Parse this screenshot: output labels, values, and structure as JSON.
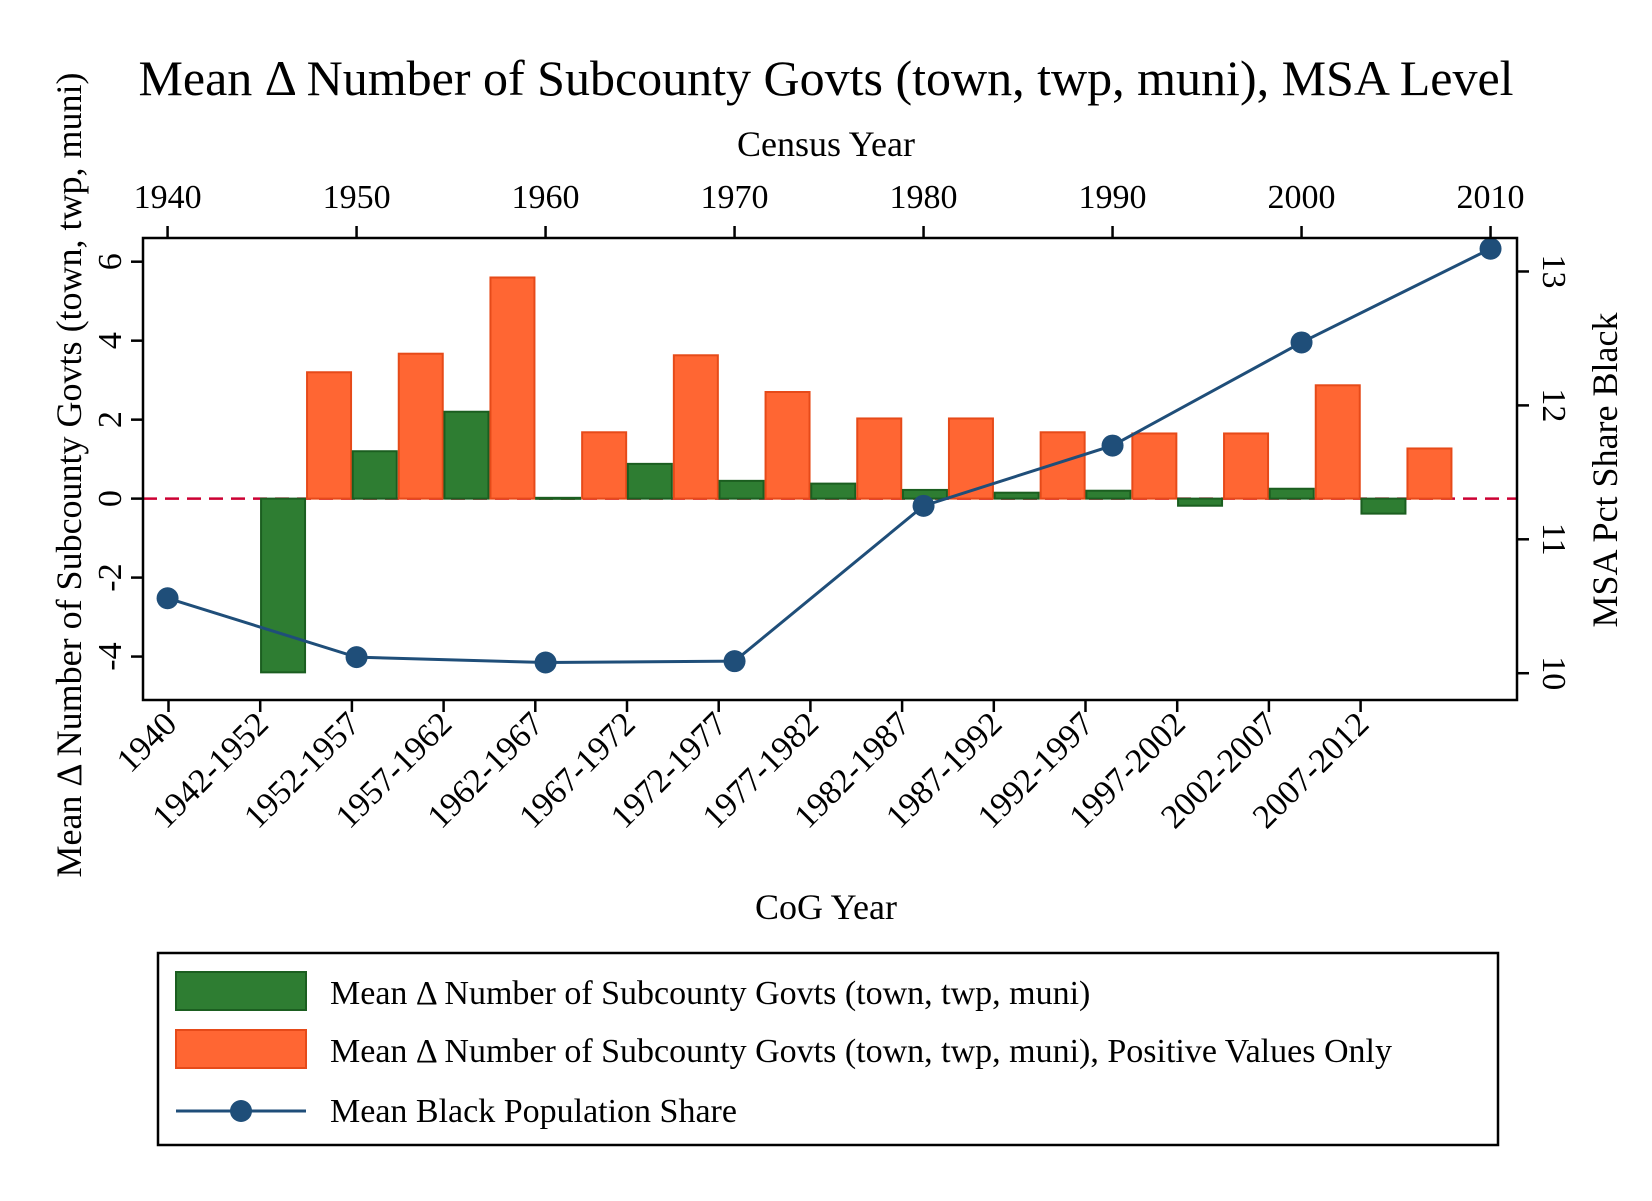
{
  "chart_data": {
    "type": "bar",
    "title": "Mean Δ Number of Subcounty Govts (town, twp, muni), MSA Level",
    "top_xlabel": "Census Year",
    "xlabel": "CoG Year",
    "ylabel": "Mean Δ Number of Subcounty Govts (town, twp, muni)",
    "y2label": "MSA Pct Share Black",
    "ylim": [
      -5.1,
      6.6
    ],
    "y2lim": [
      9.8,
      13.25
    ],
    "top_xlim": [
      1938.7,
      2011.4
    ],
    "yticks": [
      "-4",
      "-2",
      "0",
      "2",
      "4",
      "6"
    ],
    "y2ticks": [
      "10",
      "11",
      "12",
      "13"
    ],
    "top_xticks": [
      "1940",
      "1950",
      "1960",
      "1970",
      "1980",
      "1990",
      "2000",
      "2010"
    ],
    "categories": [
      "1940",
      "1942-1952",
      "1952-1957",
      "1957-1962",
      "1962-1967",
      "1967-1972",
      "1972-1977",
      "1977-1982",
      "1982-1987",
      "1987-1992",
      "1992-1997",
      "1997-2002",
      "2002-2007",
      "2007-2012"
    ],
    "series": [
      {
        "name": "Mean Δ Number of Subcounty Govts (town, twp, muni)",
        "color": "#2e7d32",
        "values": [
          null,
          -4.4,
          1.2,
          2.2,
          0.02,
          0.88,
          0.45,
          0.38,
          0.22,
          0.15,
          0.2,
          -0.18,
          0.25,
          -0.38
        ]
      },
      {
        "name": "Mean Δ Number of Subcounty Govts (town, twp, muni), Positive Values Only",
        "color": "#ff6633",
        "values": [
          null,
          3.2,
          3.67,
          5.6,
          1.68,
          3.63,
          2.7,
          2.03,
          2.03,
          1.68,
          1.65,
          1.65,
          2.87,
          1.27
        ]
      },
      {
        "name": "Mean Black Population Share",
        "color": "#1f4e79",
        "type": "line",
        "x": [
          1940,
          1950,
          1960,
          1970,
          1980,
          1990,
          2000,
          2010
        ],
        "values": [
          10.56,
          10.12,
          10.08,
          10.09,
          11.25,
          11.7,
          12.47,
          13.17
        ]
      }
    ],
    "zero_line": {
      "color": "#cc0033",
      "style": "dashed"
    },
    "grid": false,
    "legend_position": "bottom"
  }
}
